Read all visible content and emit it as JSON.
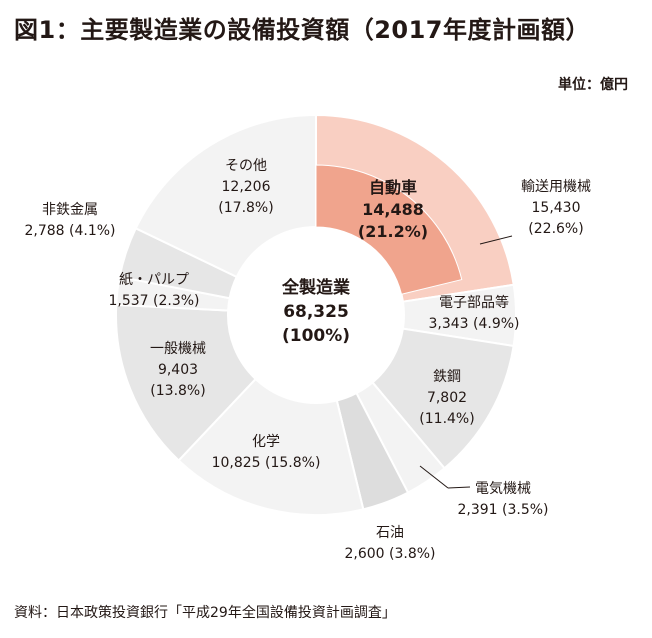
{
  "title": "図1：主要製造業の設備投資額（2017年度計画額）",
  "unit": "単位：億円",
  "source": "資料：日本政策投資銀行「平成29年全国設備投資計画調査」",
  "chart_data": {
    "type": "pie",
    "donut": true,
    "center": {
      "label": "全製造業",
      "value": "68,325",
      "percent": "(100%)"
    },
    "slices": [
      {
        "name": "自動車",
        "value": 14488,
        "value_label": "14,488",
        "percent": "(21.2%)",
        "color": "#F0A48D",
        "label_lines": [
          "自動車",
          "14,488",
          "(21.2%)"
        ],
        "bold": true,
        "highlighted": true
      },
      {
        "name": "輸送用機械",
        "value": 15430,
        "value_label": "15,430",
        "percent": "(22.6%)",
        "color": "#F9CFC2",
        "label_lines": [
          "輸送用機械",
          "15,430",
          "(22.6%)"
        ],
        "parent": true
      },
      {
        "name": "電子部品等",
        "value": 3343,
        "value_label": "3,343",
        "percent": "(4.9%)",
        "color": "#F3F3F3",
        "label_lines": [
          "電子部品等",
          "3,343 (4.9%)"
        ]
      },
      {
        "name": "鉄鋼",
        "value": 7802,
        "value_label": "7,802",
        "percent": "(11.4%)",
        "color": "#E6E6E6",
        "label_lines": [
          "鉄鋼",
          "7,802",
          "(11.4%)"
        ]
      },
      {
        "name": "電気機械",
        "value": 2391,
        "value_label": "2,391",
        "percent": "(3.5%)",
        "color": "#F3F3F3",
        "label_lines": [
          "電気機械",
          "2,391 (3.5%)"
        ]
      },
      {
        "name": "石油",
        "value": 2600,
        "value_label": "2,600",
        "percent": "(3.8%)",
        "color": "#DDDDDD",
        "label_lines": [
          "石油",
          "2,600 (3.8%)"
        ]
      },
      {
        "name": "化学",
        "value": 10825,
        "value_label": "10,825",
        "percent": "(15.8%)",
        "color": "#F3F3F3",
        "label_lines": [
          "化学",
          "10,825 (15.8%)"
        ]
      },
      {
        "name": "一般機械",
        "value": 9403,
        "value_label": "9,403",
        "percent": "(13.8%)",
        "color": "#E6E6E6",
        "label_lines": [
          "一般機械",
          "9,403",
          "(13.8%)"
        ]
      },
      {
        "name": "紙・パルプ",
        "value": 1537,
        "value_label": "1,537",
        "percent": "(2.3%)",
        "color": "#F3F3F3",
        "label_lines": [
          "紙・パルプ",
          "1,537 (2.3%)"
        ]
      },
      {
        "name": "非鉄金属",
        "value": 2788,
        "value_label": "2,788",
        "percent": "(4.1%)",
        "color": "#E6E6E6",
        "label_lines": [
          "非鉄金属",
          "2,788 (4.1%)"
        ]
      },
      {
        "name": "その他",
        "value": 12206,
        "value_label": "12,206",
        "percent": "(17.8%)",
        "color": "#F3F3F3",
        "label_lines": [
          "その他",
          "12,206",
          "(17.8%)"
        ]
      }
    ]
  }
}
